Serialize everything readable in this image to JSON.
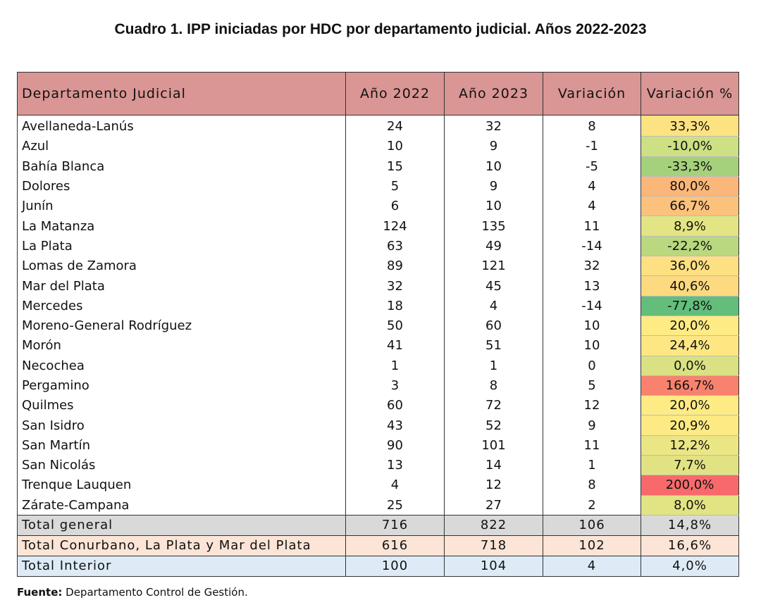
{
  "title": "Cuadro 1. IPP iniciadas por HDC por departamento judicial. Años 2022-2023",
  "headers": [
    "Departamento Judicial",
    "Año 2022",
    "Año 2023",
    "Variación",
    "Variación %"
  ],
  "rows": [
    {
      "dept": "Avellaneda-Lanús",
      "y2022": "24",
      "y2023": "32",
      "var": "8",
      "pct": "33,3%",
      "color": "#fde281"
    },
    {
      "dept": "Azul",
      "y2022": "10",
      "y2023": "9",
      "var": "-1",
      "pct": "-10,0%",
      "color": "#cde083"
    },
    {
      "dept": "Bahía Blanca",
      "y2022": "15",
      "y2023": "10",
      "var": "-5",
      "pct": "-33,3%",
      "color": "#a6d17c"
    },
    {
      "dept": "Dolores",
      "y2022": "5",
      "y2023": "9",
      "var": "4",
      "pct": "80,0%",
      "color": "#fbb679"
    },
    {
      "dept": "Junín",
      "y2022": "6",
      "y2023": "10",
      "var": "4",
      "pct": "66,7%",
      "color": "#fcc27c"
    },
    {
      "dept": "La Matanza",
      "y2022": "124",
      "y2023": "135",
      "var": "11",
      "pct": "8,9%",
      "color": "#e3e483"
    },
    {
      "dept": "La Plata",
      "y2022": "63",
      "y2023": "49",
      "var": "-14",
      "pct": "-22,2%",
      "color": "#b9d87f"
    },
    {
      "dept": "Lomas de Zamora",
      "y2022": "89",
      "y2023": "121",
      "var": "32",
      "pct": "36,0%",
      "color": "#fde081"
    },
    {
      "dept": "Mar del Plata",
      "y2022": "32",
      "y2023": "45",
      "var": "13",
      "pct": "40,6%",
      "color": "#fdd980"
    },
    {
      "dept": "Mercedes",
      "y2022": "18",
      "y2023": "4",
      "var": "-14",
      "pct": "-77,8%",
      "color": "#63be7b"
    },
    {
      "dept": "Moreno-General Rodríguez",
      "y2022": "50",
      "y2023": "60",
      "var": "10",
      "pct": "20,0%",
      "color": "#feeb84"
    },
    {
      "dept": "Morón",
      "y2022": "41",
      "y2023": "51",
      "var": "10",
      "pct": "24,4%",
      "color": "#fee783"
    },
    {
      "dept": "Necochea",
      "y2022": "1",
      "y2023": "1",
      "var": "0",
      "pct": "0,0%",
      "color": "#d9e183"
    },
    {
      "dept": "Pergamino",
      "y2022": "3",
      "y2023": "8",
      "var": "5",
      "pct": "166,7%",
      "color": "#f8826e"
    },
    {
      "dept": "Quilmes",
      "y2022": "60",
      "y2023": "72",
      "var": "12",
      "pct": "20,0%",
      "color": "#feeb84"
    },
    {
      "dept": "San Isidro",
      "y2022": "43",
      "y2023": "52",
      "var": "9",
      "pct": "20,9%",
      "color": "#feea84"
    },
    {
      "dept": "San Martín",
      "y2022": "90",
      "y2023": "101",
      "var": "11",
      "pct": "12,2%",
      "color": "#ebe684"
    },
    {
      "dept": "San Nicolás",
      "y2022": "13",
      "y2023": "14",
      "var": "1",
      "pct": "7,7%",
      "color": "#e1e383"
    },
    {
      "dept": "Trenque Lauquen",
      "y2022": "4",
      "y2023": "12",
      "var": "8",
      "pct": "200,0%",
      "color": "#f8696b"
    },
    {
      "dept": "Zárate-Campana",
      "y2022": "25",
      "y2023": "27",
      "var": "2",
      "pct": "8,0%",
      "color": "#e2e383"
    }
  ],
  "totals": [
    {
      "label": "Total general",
      "y2022": "716",
      "y2023": "822",
      "var": "106",
      "pct": "14,8%",
      "color": "#d9d9d9"
    },
    {
      "label": "Total Conurbano, La Plata y Mar del Plata",
      "y2022": "616",
      "y2023": "718",
      "var": "102",
      "pct": "16,6%",
      "color": "#fce4d6"
    },
    {
      "label": "Total Interior",
      "y2022": "100",
      "y2023": "104",
      "var": "4",
      "pct": "4,0%",
      "color": "#deebf7"
    }
  ],
  "source": {
    "label": "Fuente:",
    "text": "Departamento Control de Gestión."
  }
}
